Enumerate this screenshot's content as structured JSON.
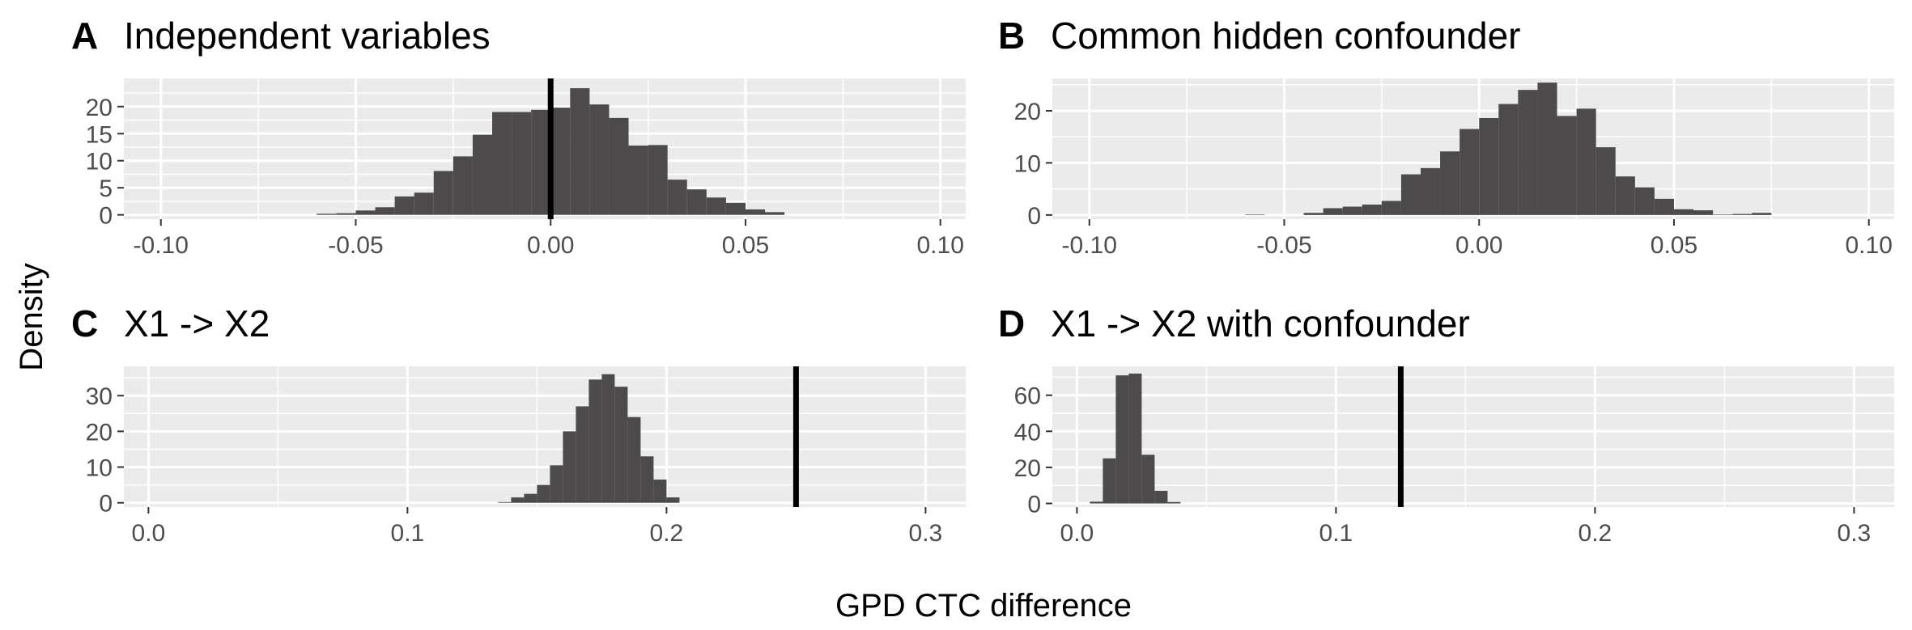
{
  "figure": {
    "ylabel": "Density",
    "xlabel": "GPD CTC difference"
  },
  "chart_data": [
    {
      "type": "bar",
      "tag": "A",
      "title": "Independent variables",
      "xlim": [
        -0.1095,
        0.1065
      ],
      "ylim": [
        -0.8,
        25.2
      ],
      "xticks": [
        -0.1,
        -0.05,
        0.0,
        0.05,
        0.1
      ],
      "xtick_labels": [
        "-0.10",
        "-0.05",
        "0.00",
        "0.05",
        "0.10"
      ],
      "yticks": [
        0,
        5,
        10,
        15,
        20
      ],
      "ytick_labels": [
        "0",
        "5",
        "10",
        "15",
        "20"
      ],
      "bin_width": 0.005,
      "bin_start": -0.06,
      "values": [
        0.2,
        0.3,
        0.8,
        1.4,
        3.4,
        4.1,
        8.1,
        10.8,
        14.8,
        19.0,
        19.0,
        19.4,
        19.8,
        23.4,
        20.4,
        17.9,
        12.8,
        12.9,
        6.5,
        4.7,
        3.2,
        2.2,
        1.0,
        0.5
      ],
      "reference_line": 0.0
    },
    {
      "type": "bar",
      "tag": "B",
      "title": "Common hidden confounder",
      "xlim": [
        -0.1095,
        0.1065
      ],
      "ylim": [
        -0.8,
        26.2
      ],
      "xticks": [
        -0.1,
        -0.05,
        0.0,
        0.05,
        0.1
      ],
      "xtick_labels": [
        "-0.10",
        "-0.05",
        "0.00",
        "0.05",
        "0.10"
      ],
      "yticks": [
        0,
        10,
        20
      ],
      "ytick_labels": [
        "0",
        "10",
        "20"
      ],
      "bin_width": 0.005,
      "bin_start": -0.06,
      "values": [
        0.1,
        0.0,
        0.0,
        0.4,
        1.3,
        1.6,
        2.0,
        2.7,
        7.8,
        9.0,
        12.2,
        16.5,
        18.6,
        21.3,
        24.0,
        25.4,
        19.0,
        20.4,
        13.0,
        7.4,
        5.3,
        3.1,
        1.1,
        0.9,
        0.1,
        0.2,
        0.4,
        0.0
      ]
    },
    {
      "type": "bar",
      "tag": "C",
      "title": "X1 -> X2",
      "xlim": [
        -0.0095,
        0.3155
      ],
      "ylim": [
        -1.2,
        38.2
      ],
      "xticks": [
        0.0,
        0.1,
        0.2,
        0.3
      ],
      "xtick_labels": [
        "0.0",
        "0.1",
        "0.2",
        "0.3"
      ],
      "yticks": [
        0,
        10,
        20,
        30
      ],
      "ytick_labels": [
        "0",
        "10",
        "20",
        "30"
      ],
      "bin_width": 0.005,
      "bin_start": 0.135,
      "values": [
        0.2,
        1.5,
        2.5,
        5.0,
        10.5,
        20.0,
        27.0,
        34.5,
        36.0,
        32.5,
        24.0,
        13.0,
        6.5,
        1.5
      ],
      "reference_line": 0.25
    },
    {
      "type": "bar",
      "tag": "D",
      "title": "X1 -> X2 with confounder",
      "xlim": [
        -0.0095,
        0.3155
      ],
      "ylim": [
        -2.0,
        76.0
      ],
      "xticks": [
        0.0,
        0.1,
        0.2,
        0.3
      ],
      "xtick_labels": [
        "0.0",
        "0.1",
        "0.2",
        "0.3"
      ],
      "yticks": [
        0,
        20,
        40,
        60
      ],
      "ytick_labels": [
        "0",
        "20",
        "40",
        "60"
      ],
      "bin_width": 0.005,
      "bin_start": 0.005,
      "values": [
        1.0,
        25.0,
        71.0,
        72.0,
        27.0,
        7.0,
        0.8
      ],
      "reference_line": 0.125
    }
  ]
}
